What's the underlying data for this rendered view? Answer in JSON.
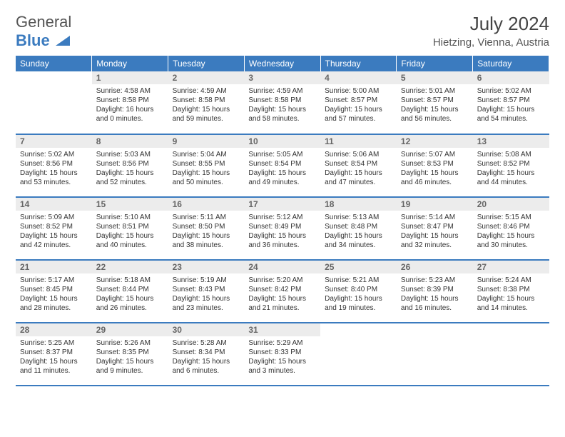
{
  "logo": {
    "first": "General",
    "second": "Blue"
  },
  "title": "July 2024",
  "location": "Hietzing, Vienna, Austria",
  "colors": {
    "header_bg": "#3b7bbf",
    "header_text": "#ffffff",
    "daynum_bg": "#ececec",
    "daynum_text": "#666666",
    "row_border": "#3b7bbf",
    "body_text": "#333333",
    "logo_first": "#555555",
    "logo_second": "#3b7bbf",
    "background": "#ffffff"
  },
  "weekdays": [
    "Sunday",
    "Monday",
    "Tuesday",
    "Wednesday",
    "Thursday",
    "Friday",
    "Saturday"
  ],
  "weeks": [
    [
      {
        "day": "",
        "sunrise": "",
        "sunset": "",
        "daylight": "",
        "empty": true
      },
      {
        "day": "1",
        "sunrise": "Sunrise: 4:58 AM",
        "sunset": "Sunset: 8:58 PM",
        "daylight": "Daylight: 16 hours and 0 minutes."
      },
      {
        "day": "2",
        "sunrise": "Sunrise: 4:59 AM",
        "sunset": "Sunset: 8:58 PM",
        "daylight": "Daylight: 15 hours and 59 minutes."
      },
      {
        "day": "3",
        "sunrise": "Sunrise: 4:59 AM",
        "sunset": "Sunset: 8:58 PM",
        "daylight": "Daylight: 15 hours and 58 minutes."
      },
      {
        "day": "4",
        "sunrise": "Sunrise: 5:00 AM",
        "sunset": "Sunset: 8:57 PM",
        "daylight": "Daylight: 15 hours and 57 minutes."
      },
      {
        "day": "5",
        "sunrise": "Sunrise: 5:01 AM",
        "sunset": "Sunset: 8:57 PM",
        "daylight": "Daylight: 15 hours and 56 minutes."
      },
      {
        "day": "6",
        "sunrise": "Sunrise: 5:02 AM",
        "sunset": "Sunset: 8:57 PM",
        "daylight": "Daylight: 15 hours and 54 minutes."
      }
    ],
    [
      {
        "day": "7",
        "sunrise": "Sunrise: 5:02 AM",
        "sunset": "Sunset: 8:56 PM",
        "daylight": "Daylight: 15 hours and 53 minutes."
      },
      {
        "day": "8",
        "sunrise": "Sunrise: 5:03 AM",
        "sunset": "Sunset: 8:56 PM",
        "daylight": "Daylight: 15 hours and 52 minutes."
      },
      {
        "day": "9",
        "sunrise": "Sunrise: 5:04 AM",
        "sunset": "Sunset: 8:55 PM",
        "daylight": "Daylight: 15 hours and 50 minutes."
      },
      {
        "day": "10",
        "sunrise": "Sunrise: 5:05 AM",
        "sunset": "Sunset: 8:54 PM",
        "daylight": "Daylight: 15 hours and 49 minutes."
      },
      {
        "day": "11",
        "sunrise": "Sunrise: 5:06 AM",
        "sunset": "Sunset: 8:54 PM",
        "daylight": "Daylight: 15 hours and 47 minutes."
      },
      {
        "day": "12",
        "sunrise": "Sunrise: 5:07 AM",
        "sunset": "Sunset: 8:53 PM",
        "daylight": "Daylight: 15 hours and 46 minutes."
      },
      {
        "day": "13",
        "sunrise": "Sunrise: 5:08 AM",
        "sunset": "Sunset: 8:52 PM",
        "daylight": "Daylight: 15 hours and 44 minutes."
      }
    ],
    [
      {
        "day": "14",
        "sunrise": "Sunrise: 5:09 AM",
        "sunset": "Sunset: 8:52 PM",
        "daylight": "Daylight: 15 hours and 42 minutes."
      },
      {
        "day": "15",
        "sunrise": "Sunrise: 5:10 AM",
        "sunset": "Sunset: 8:51 PM",
        "daylight": "Daylight: 15 hours and 40 minutes."
      },
      {
        "day": "16",
        "sunrise": "Sunrise: 5:11 AM",
        "sunset": "Sunset: 8:50 PM",
        "daylight": "Daylight: 15 hours and 38 minutes."
      },
      {
        "day": "17",
        "sunrise": "Sunrise: 5:12 AM",
        "sunset": "Sunset: 8:49 PM",
        "daylight": "Daylight: 15 hours and 36 minutes."
      },
      {
        "day": "18",
        "sunrise": "Sunrise: 5:13 AM",
        "sunset": "Sunset: 8:48 PM",
        "daylight": "Daylight: 15 hours and 34 minutes."
      },
      {
        "day": "19",
        "sunrise": "Sunrise: 5:14 AM",
        "sunset": "Sunset: 8:47 PM",
        "daylight": "Daylight: 15 hours and 32 minutes."
      },
      {
        "day": "20",
        "sunrise": "Sunrise: 5:15 AM",
        "sunset": "Sunset: 8:46 PM",
        "daylight": "Daylight: 15 hours and 30 minutes."
      }
    ],
    [
      {
        "day": "21",
        "sunrise": "Sunrise: 5:17 AM",
        "sunset": "Sunset: 8:45 PM",
        "daylight": "Daylight: 15 hours and 28 minutes."
      },
      {
        "day": "22",
        "sunrise": "Sunrise: 5:18 AM",
        "sunset": "Sunset: 8:44 PM",
        "daylight": "Daylight: 15 hours and 26 minutes."
      },
      {
        "day": "23",
        "sunrise": "Sunrise: 5:19 AM",
        "sunset": "Sunset: 8:43 PM",
        "daylight": "Daylight: 15 hours and 23 minutes."
      },
      {
        "day": "24",
        "sunrise": "Sunrise: 5:20 AM",
        "sunset": "Sunset: 8:42 PM",
        "daylight": "Daylight: 15 hours and 21 minutes."
      },
      {
        "day": "25",
        "sunrise": "Sunrise: 5:21 AM",
        "sunset": "Sunset: 8:40 PM",
        "daylight": "Daylight: 15 hours and 19 minutes."
      },
      {
        "day": "26",
        "sunrise": "Sunrise: 5:23 AM",
        "sunset": "Sunset: 8:39 PM",
        "daylight": "Daylight: 15 hours and 16 minutes."
      },
      {
        "day": "27",
        "sunrise": "Sunrise: 5:24 AM",
        "sunset": "Sunset: 8:38 PM",
        "daylight": "Daylight: 15 hours and 14 minutes."
      }
    ],
    [
      {
        "day": "28",
        "sunrise": "Sunrise: 5:25 AM",
        "sunset": "Sunset: 8:37 PM",
        "daylight": "Daylight: 15 hours and 11 minutes."
      },
      {
        "day": "29",
        "sunrise": "Sunrise: 5:26 AM",
        "sunset": "Sunset: 8:35 PM",
        "daylight": "Daylight: 15 hours and 9 minutes."
      },
      {
        "day": "30",
        "sunrise": "Sunrise: 5:28 AM",
        "sunset": "Sunset: 8:34 PM",
        "daylight": "Daylight: 15 hours and 6 minutes."
      },
      {
        "day": "31",
        "sunrise": "Sunrise: 5:29 AM",
        "sunset": "Sunset: 8:33 PM",
        "daylight": "Daylight: 15 hours and 3 minutes."
      },
      {
        "day": "",
        "sunrise": "",
        "sunset": "",
        "daylight": "",
        "empty": true
      },
      {
        "day": "",
        "sunrise": "",
        "sunset": "",
        "daylight": "",
        "empty": true
      },
      {
        "day": "",
        "sunrise": "",
        "sunset": "",
        "daylight": "",
        "empty": true
      }
    ]
  ]
}
